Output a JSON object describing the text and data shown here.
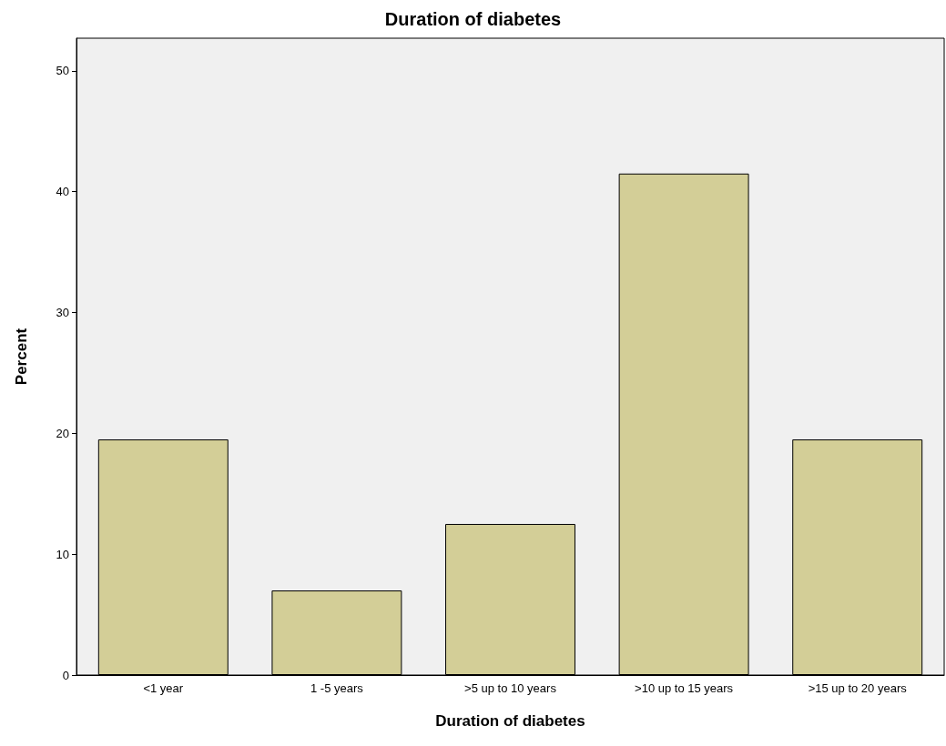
{
  "chart_data": {
    "type": "bar",
    "title": "Duration of diabetes",
    "xlabel": "Duration of diabetes",
    "ylabel": "Percent",
    "categories": [
      "<1 year",
      "1 -5 years",
      ">5 up to 10 years",
      ">10 up to 15 years",
      ">15 up to 20 years"
    ],
    "values": [
      19.5,
      7.0,
      12.5,
      41.5,
      19.5
    ],
    "color": "#d3ce97",
    "ylim": [
      0,
      52.7
    ],
    "yticks": [
      0,
      10,
      20,
      30,
      40,
      50
    ],
    "grid": false
  }
}
